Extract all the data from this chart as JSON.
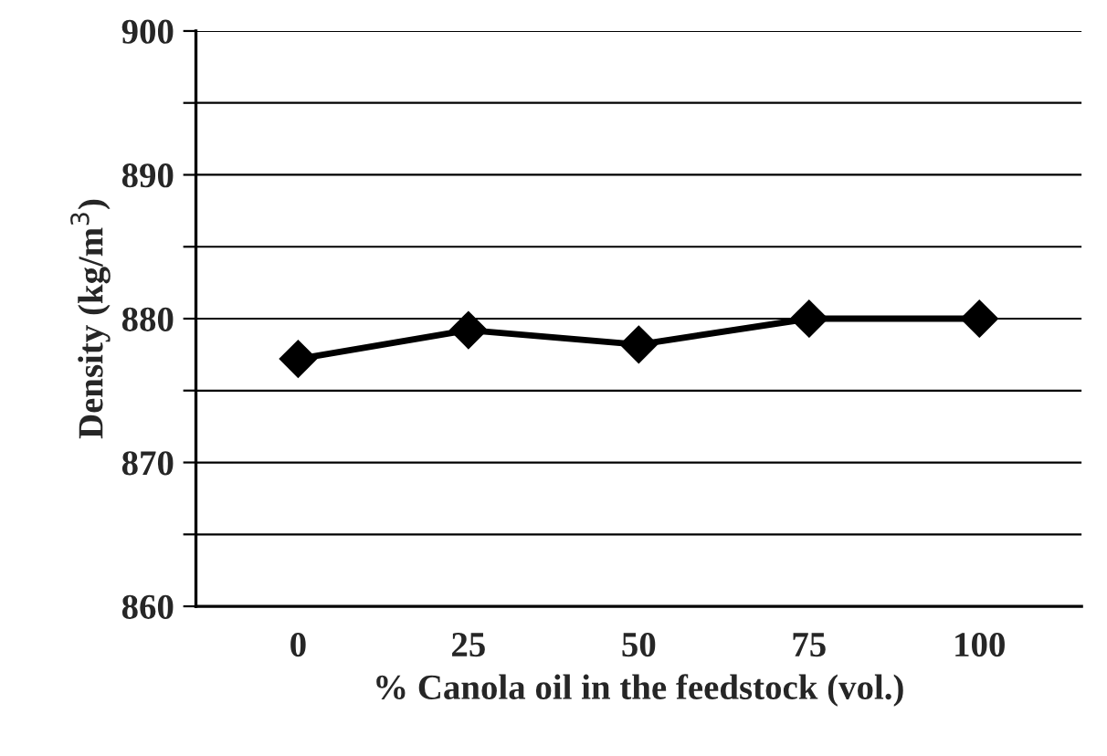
{
  "chart_data": {
    "type": "line",
    "xlabel": "% Canola oil in the feedstock (vol.)",
    "ylabel": "Density (kg/m$^{3}$)",
    "categories": [
      "0",
      "25",
      "50",
      "75",
      "100"
    ],
    "series": [
      {
        "color": "#000000",
        "values": [
          877.2,
          879.2,
          878.2,
          880.0,
          880.0
        ]
      }
    ],
    "ylim": [
      860,
      900
    ],
    "yticks": [
      860,
      {
        "value": 865,
        "label": null
      },
      870,
      {
        "value": 875,
        "label": null
      },
      880,
      {
        "value": 885,
        "label": null
      },
      890,
      {
        "value": 895,
        "label": null
      },
      900
    ],
    "grid": "y",
    "marker": "diamond",
    "line_style": "solid",
    "legend": false
  }
}
